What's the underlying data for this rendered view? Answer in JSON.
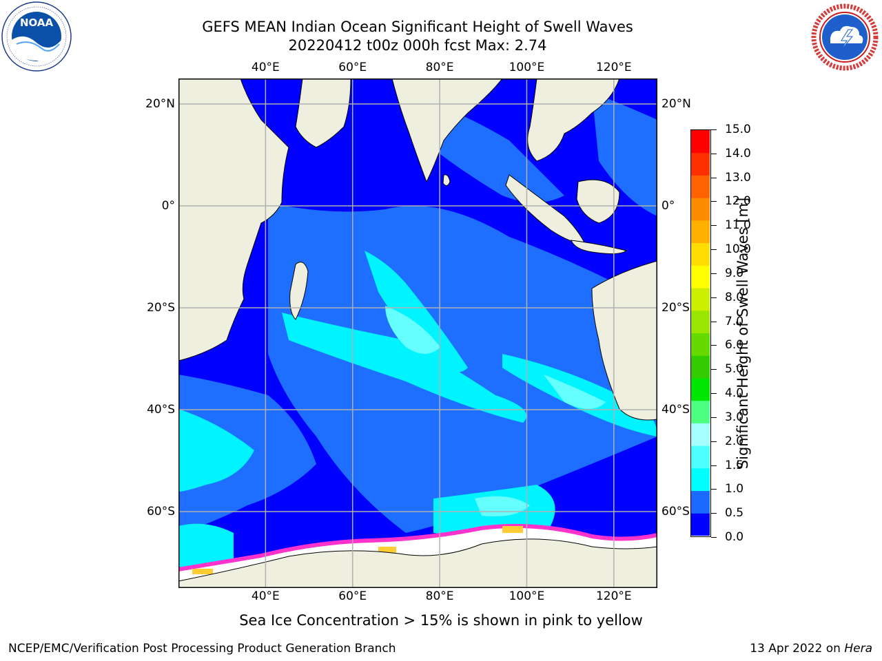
{
  "title_line1": "GEFS MEAN Indian Ocean Significant Height of Swell Waves",
  "title_line2": "20220412 t00z 000h fcst   Max: 2.74",
  "logos": {
    "left": "NOAA",
    "right": "NATIONAL WEATHER SERVICE"
  },
  "map": {
    "lon_ticks": [
      "40°E",
      "60°E",
      "80°E",
      "100°E",
      "120°E"
    ],
    "lat_ticks": [
      "20°N",
      "0°",
      "20°S",
      "40°S",
      "60°S"
    ],
    "lon_range": [
      20,
      130
    ],
    "lat_range": [
      -75,
      25
    ],
    "colors": {
      "land": "#efefdf",
      "ocean_low": "#0000ff",
      "ocean_mid": "#1e6fff",
      "ocean_high": "#00f4ff",
      "ocean_peak": "#66ffff",
      "ice": "#ffffff",
      "ice_edge": "#ff33cc",
      "ice_yellow": "#ffcc33",
      "grid": "#b0b0b0"
    }
  },
  "colorbar": {
    "label": "Significant Height of Swell Waves [m]",
    "ticks": [
      "0.0",
      "0.5",
      "1.0",
      "1.5",
      "2.0",
      "3.0",
      "4.0",
      "5.0",
      "6.0",
      "7.0",
      "8.0",
      "9.0",
      "10.0",
      "11.0",
      "12.0",
      "13.0",
      "14.0",
      "15.0"
    ],
    "colors": [
      "#0000ff",
      "#1a6aff",
      "#00ffff",
      "#4dffff",
      "#a6ffff",
      "#4dff80",
      "#00e600",
      "#33cc00",
      "#66d900",
      "#99e600",
      "#ccee00",
      "#ffff00",
      "#ffdd00",
      "#ffb000",
      "#ff8c00",
      "#ff6200",
      "#ff3000",
      "#ff0000"
    ]
  },
  "footnote": "Sea Ice Concentration > 15% is shown in pink to yellow",
  "footer_left": "NCEP/EMC/Verification Post Processing Product Generation Branch",
  "footer_right_prefix": "13 Apr 2022 on ",
  "footer_right_host": "Hera"
}
